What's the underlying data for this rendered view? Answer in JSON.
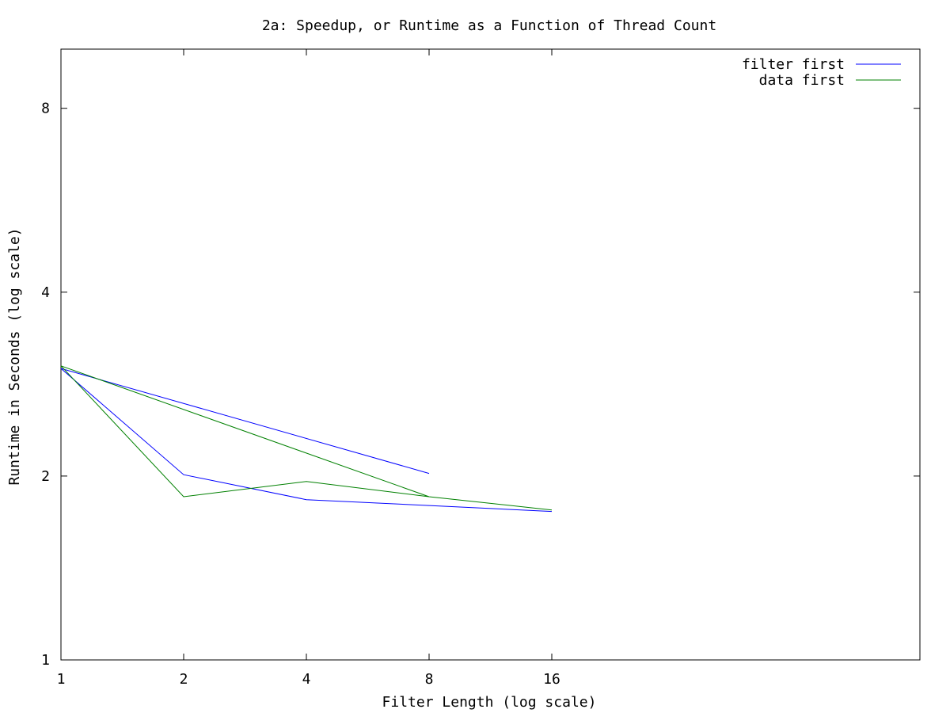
{
  "chart_data": {
    "type": "line",
    "title": "2a: Speedup, or Runtime as a Function of Thread Count",
    "xlabel": "Filter Length (log scale)",
    "ylabel": "Runtime in Seconds (log scale)",
    "x_scale": "log2",
    "y_scale": "log2",
    "xlim": [
      1,
      128
    ],
    "ylim": [
      1,
      10
    ],
    "x_ticks": [
      1,
      2,
      4,
      8,
      16
    ],
    "y_ticks": [
      1,
      2,
      4,
      8
    ],
    "legend_position": "top-right",
    "grid": false,
    "series": [
      {
        "name": "filter first",
        "color": "#0000ff",
        "x": [
          8,
          1,
          2,
          4,
          8,
          16
        ],
        "y": [
          2.02,
          3.0,
          2.01,
          1.83,
          1.79,
          1.75
        ]
      },
      {
        "name": "data first",
        "color": "#008000",
        "x": [
          8,
          1,
          2,
          4,
          8,
          16
        ],
        "y": [
          1.85,
          3.03,
          1.85,
          1.96,
          1.85,
          1.76
        ]
      }
    ]
  }
}
